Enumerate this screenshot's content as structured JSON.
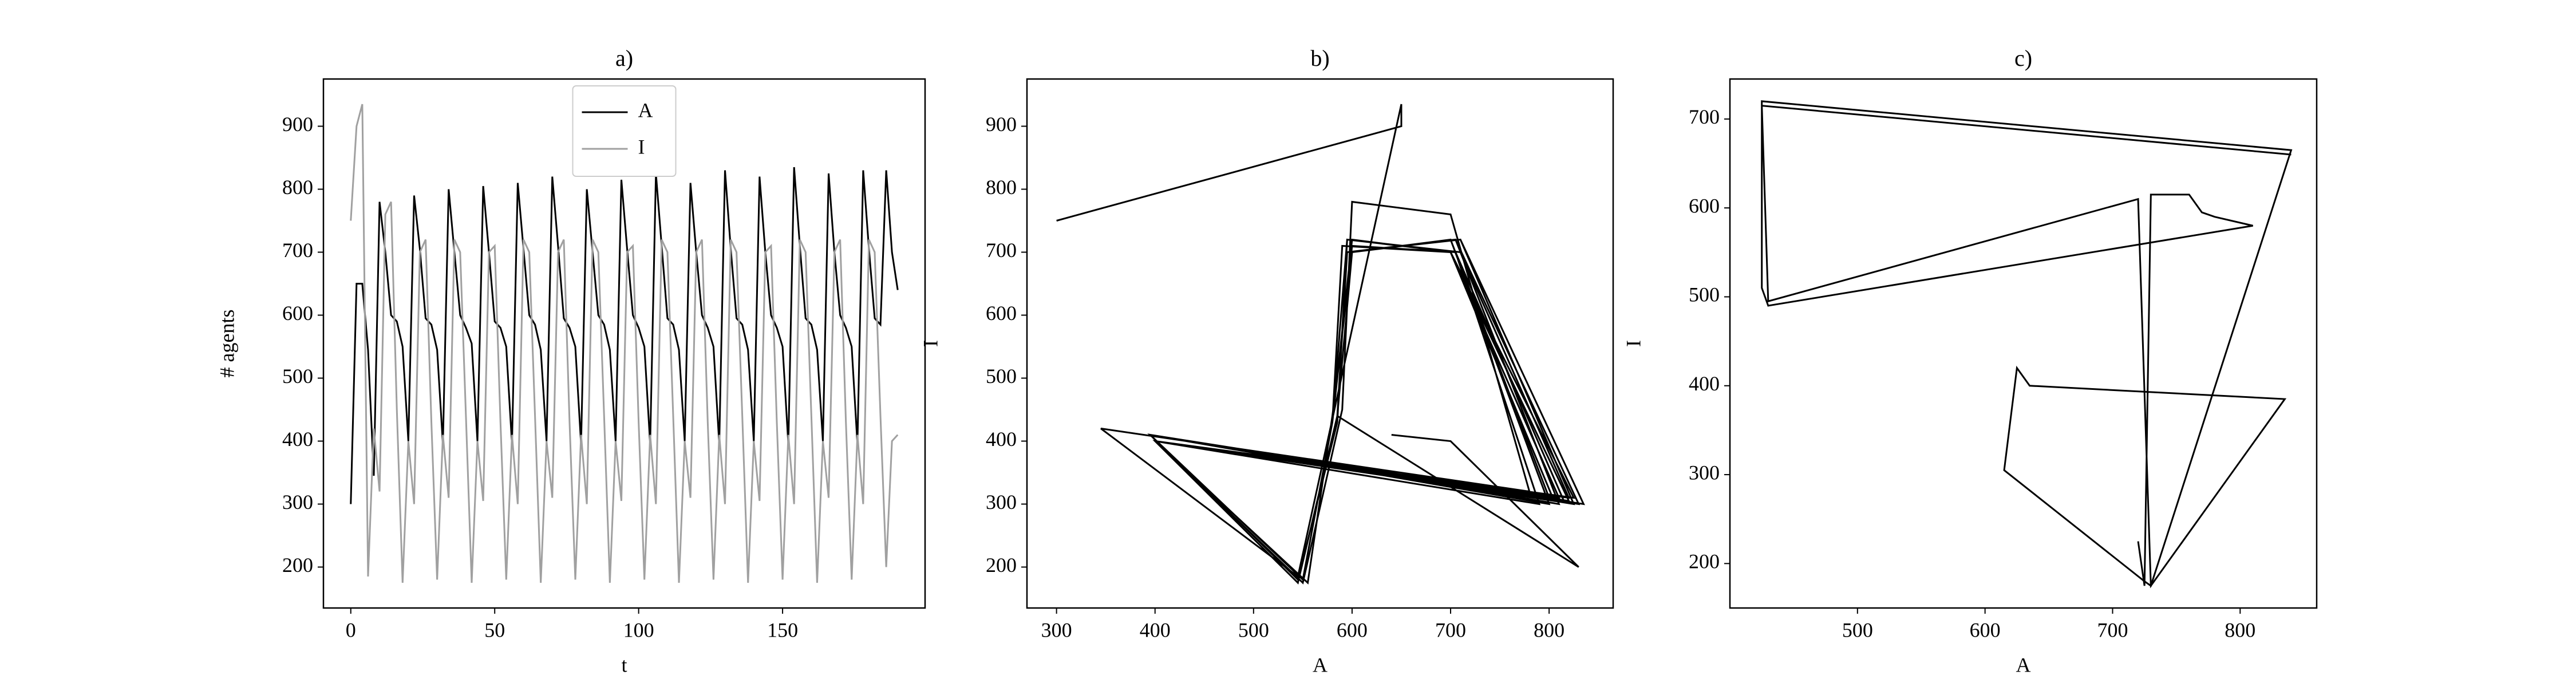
{
  "chart_data": [
    {
      "type": "line",
      "title": "a)",
      "xlabel": "t",
      "ylabel": "# agents",
      "x": [
        0,
        2,
        4,
        6,
        8,
        10,
        12,
        14,
        16,
        18,
        20,
        22,
        24,
        26,
        28,
        30,
        32,
        34,
        36,
        38,
        40,
        42,
        44,
        46,
        48,
        50,
        52,
        54,
        56,
        58,
        60,
        62,
        64,
        66,
        68,
        70,
        72,
        74,
        76,
        78,
        80,
        82,
        84,
        86,
        88,
        90,
        92,
        94,
        96,
        98,
        100,
        102,
        104,
        106,
        108,
        110,
        112,
        114,
        116,
        118,
        120,
        122,
        124,
        126,
        128,
        130,
        132,
        134,
        136,
        138,
        140,
        142,
        144,
        146,
        148,
        150,
        152,
        154,
        156,
        158,
        160,
        162,
        164,
        166,
        168,
        170,
        172,
        174,
        176,
        178,
        180,
        182,
        184,
        186,
        188,
        190
      ],
      "series": [
        {
          "name": "A",
          "color": "#000000",
          "values": [
            300,
            650,
            650,
            545,
            345,
            780,
            700,
            600,
            590,
            550,
            400,
            790,
            705,
            595,
            585,
            545,
            395,
            800,
            700,
            600,
            580,
            555,
            400,
            805,
            700,
            590,
            580,
            550,
            395,
            810,
            705,
            600,
            585,
            545,
            400,
            820,
            710,
            595,
            580,
            550,
            395,
            800,
            700,
            600,
            585,
            545,
            400,
            815,
            705,
            600,
            580,
            550,
            395,
            825,
            710,
            595,
            585,
            545,
            400,
            810,
            700,
            600,
            580,
            550,
            395,
            830,
            705,
            595,
            585,
            545,
            400,
            820,
            700,
            600,
            580,
            550,
            395,
            835,
            710,
            595,
            585,
            545,
            400,
            825,
            700,
            600,
            580,
            550,
            395,
            830,
            705,
            595,
            585,
            830,
            700,
            640
          ]
        },
        {
          "name": "I",
          "color": "#a0a0a0",
          "values": [
            750,
            900,
            935,
            185,
            420,
            320,
            760,
            780,
            450,
            175,
            400,
            300,
            700,
            720,
            430,
            180,
            410,
            310,
            720,
            700,
            440,
            175,
            400,
            305,
            700,
            710,
            430,
            180,
            410,
            300,
            720,
            700,
            440,
            175,
            400,
            310,
            700,
            720,
            430,
            180,
            410,
            300,
            720,
            700,
            440,
            175,
            400,
            305,
            700,
            710,
            430,
            180,
            410,
            300,
            720,
            700,
            440,
            175,
            400,
            310,
            700,
            720,
            430,
            180,
            410,
            300,
            720,
            700,
            440,
            175,
            400,
            305,
            700,
            710,
            430,
            180,
            410,
            300,
            720,
            700,
            440,
            175,
            400,
            310,
            700,
            720,
            430,
            180,
            410,
            300,
            720,
            700,
            440,
            200,
            400,
            410
          ]
        }
      ],
      "xlim": [
        -9.5,
        199.5
      ],
      "xticks": [
        0,
        50,
        100,
        150
      ],
      "ylim": [
        135,
        975
      ],
      "yticks": [
        200,
        300,
        400,
        500,
        600,
        700,
        800,
        900
      ],
      "legend": "upper center"
    },
    {
      "type": "phase",
      "title": "b)",
      "xlabel": "A",
      "ylabel": "I",
      "xlim": [
        270,
        865
      ],
      "xticks": [
        300,
        400,
        500,
        600,
        700,
        800
      ],
      "ylim": [
        135,
        975
      ],
      "yticks": [
        200,
        300,
        400,
        500,
        600,
        700,
        800,
        900
      ]
    },
    {
      "type": "line",
      "title": "c)",
      "xlabel": "A",
      "ylabel": "I",
      "x": [
        720,
        725,
        730,
        760,
        770,
        780,
        810,
        430,
        425,
        425,
        840,
        730,
        725,
        615,
        625,
        635,
        835,
        730,
        720,
        430,
        425,
        840
      ],
      "series": [
        {
          "color": "#000000",
          "values": [
            225,
            175,
            615,
            615,
            595,
            590,
            580,
            490,
            510,
            720,
            665,
            175,
            180,
            305,
            420,
            400,
            385,
            175,
            610,
            495,
            715,
            660
          ]
        }
      ],
      "xlim": [
        400,
        860
      ],
      "xticks": [
        500,
        600,
        700,
        800
      ],
      "ylim": [
        150,
        745
      ],
      "yticks": [
        200,
        300,
        400,
        500,
        600,
        700
      ]
    }
  ]
}
